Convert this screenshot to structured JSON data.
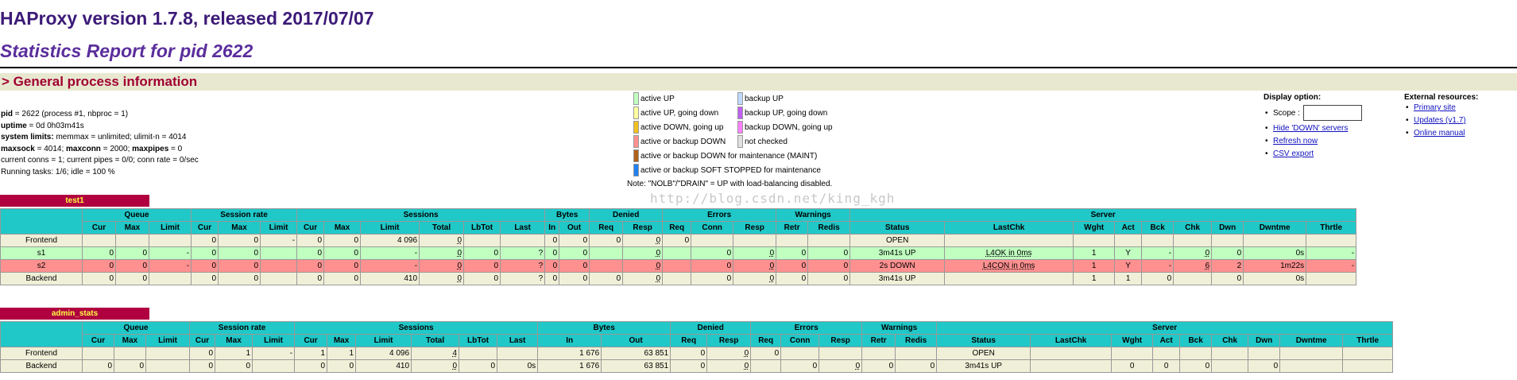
{
  "header": {
    "version": "HAProxy version 1.7.8, released 2017/07/07",
    "report": "Statistics Report for pid 2622",
    "general": "> General process information"
  },
  "process_info": [
    {
      "label": "pid",
      "value": " = 2622 (process #1, nbproc = 1)"
    },
    {
      "label": "uptime",
      "value": " = 0d 0h03m41s"
    },
    {
      "label": "system limits:",
      "value": " memmax = unlimited; ulimit-n = 4014"
    },
    {
      "label": "maxsock",
      "value": " = 4014; ",
      "label2": "maxconn",
      "value2": " = 2000; ",
      "label3": "maxpipes",
      "value3": " = 0"
    },
    {
      "label": "",
      "value": "current conns = 1; current pipes = 0/0; conn rate = 0/sec"
    },
    {
      "label": "",
      "value": "Running tasks: 1/6; idle = 100 %"
    }
  ],
  "legend": [
    {
      "color": "#c0ffc0",
      "label": "active UP"
    },
    {
      "color": "#ffffa0",
      "label": "active UP, going down"
    },
    {
      "color": "#f0c020",
      "label": "active DOWN, going up"
    },
    {
      "color": "#ff9090",
      "label": "active or backup DOWN"
    },
    {
      "color": "#b06018",
      "label": "active or backup DOWN for maintenance (MAINT)"
    },
    {
      "color": "#2080f0",
      "label": "active or backup SOFT STOPPED for maintenance"
    },
    {
      "color": "#c0d8ff",
      "label": "backup UP"
    },
    {
      "color": "#c060f0",
      "label": "backup UP, going down"
    },
    {
      "color": "#ff80ff",
      "label": "backup DOWN, going up"
    },
    {
      "color": "#e0e0e0",
      "label": "not checked"
    }
  ],
  "note": "Note: \"NOLB\"/\"DRAIN\" = UP with load-balancing disabled.",
  "display": {
    "title": "Display option:",
    "scope_label": "Scope :",
    "scope_value": "",
    "links": [
      "Hide 'DOWN' servers",
      "Refresh now",
      "CSV export"
    ]
  },
  "external": {
    "title": "External resources:",
    "links": [
      "Primary site",
      "Updates (v1.7)",
      "Online manual"
    ]
  },
  "watermark": "http://blog.csdn.net/king_kgh",
  "group_headers": [
    "Queue",
    "Session rate",
    "Sessions",
    "Bytes",
    "Denied",
    "Errors",
    "Warnings",
    "Server"
  ],
  "column_headers": [
    "Cur",
    "Max",
    "Limit",
    "Cur",
    "Max",
    "Limit",
    "Cur",
    "Max",
    "Limit",
    "Total",
    "LbTot",
    "Last",
    "In",
    "Out",
    "Req",
    "Resp",
    "Req",
    "Conn",
    "Resp",
    "Retr",
    "Redis",
    "Status",
    "LastChk",
    "Wght",
    "Act",
    "Bck",
    "Chk",
    "Dwn",
    "Dwntme",
    "Thrtle"
  ],
  "proxies": [
    {
      "name": "test1",
      "rows": [
        {
          "kind": "fe",
          "name": "Frontend",
          "cells": [
            "",
            "",
            "",
            "0",
            "0",
            "-",
            "0",
            "0",
            "4 096",
            "0",
            "",
            "",
            "0",
            "0",
            "0",
            "0",
            "0",
            "",
            "",
            "",
            "",
            "OPEN",
            "",
            "",
            "",
            "",
            "",
            "",
            "",
            ""
          ]
        },
        {
          "kind": "up",
          "name": "s1",
          "cells": [
            "0",
            "0",
            "-",
            "0",
            "0",
            "",
            "0",
            "0",
            "-",
            "0",
            "0",
            "?",
            "0",
            "0",
            "",
            "0",
            "",
            "0",
            "0",
            "0",
            "0",
            "3m41s UP",
            "L4OK in 0ms",
            "1",
            "Y",
            "-",
            "0",
            "0",
            "0s",
            "-"
          ]
        },
        {
          "kind": "down",
          "name": "s2",
          "cells": [
            "0",
            "0",
            "-",
            "0",
            "0",
            "",
            "0",
            "0",
            "-",
            "0",
            "0",
            "?",
            "0",
            "0",
            "",
            "0",
            "",
            "0",
            "0",
            "0",
            "0",
            "2s DOWN",
            "L4CON in 0ms",
            "1",
            "Y",
            "-",
            "6",
            "2",
            "1m22s",
            "-"
          ]
        },
        {
          "kind": "be",
          "name": "Backend",
          "cells": [
            "0",
            "0",
            "",
            "0",
            "0",
            "",
            "0",
            "0",
            "410",
            "0",
            "0",
            "?",
            "0",
            "0",
            "0",
            "0",
            "",
            "0",
            "0",
            "0",
            "0",
            "3m41s UP",
            "",
            "1",
            "1",
            "0",
            "",
            "0",
            "0s",
            ""
          ]
        }
      ]
    },
    {
      "name": "admin_stats",
      "rows": [
        {
          "kind": "fe",
          "name": "Frontend",
          "cells": [
            "",
            "",
            "",
            "0",
            "1",
            "-",
            "1",
            "1",
            "4 096",
            "4",
            "",
            "",
            "1 676",
            "63 851",
            "0",
            "0",
            "0",
            "",
            "",
            "",
            "",
            "OPEN",
            "",
            "",
            "",
            "",
            "",
            "",
            "",
            ""
          ]
        },
        {
          "kind": "be",
          "name": "Backend",
          "cells": [
            "0",
            "0",
            "",
            "0",
            "0",
            "",
            "0",
            "0",
            "410",
            "0",
            "0",
            "0s",
            "1 676",
            "63 851",
            "0",
            "0",
            "",
            "0",
            "0",
            "0",
            "0",
            "3m41s UP",
            "",
            "0",
            "0",
            "0",
            "",
            "0",
            "",
            ""
          ]
        }
      ]
    }
  ]
}
